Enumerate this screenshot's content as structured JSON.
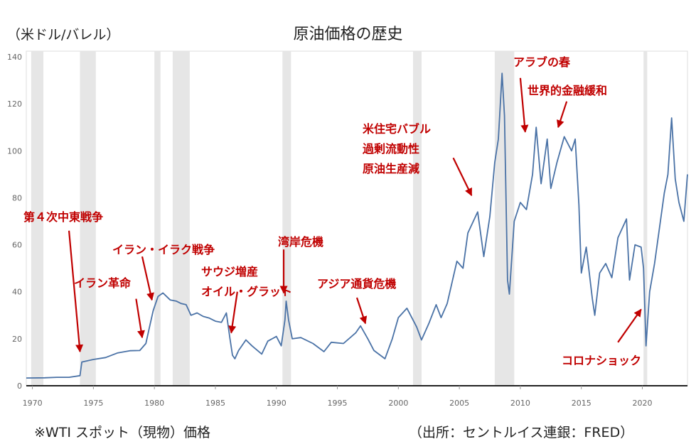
{
  "header": {
    "unit": "（米ドル/バレル）",
    "title": "原油価格の歴史"
  },
  "footer": {
    "note": "※WTI スポット（現物）価格",
    "source": "（出所：セントルイス連銀：FRED）"
  },
  "colors": {
    "line": "#4a72a6",
    "annotation": "#c00000",
    "recession": "#e6e6e6",
    "axis": "#999999"
  },
  "chart_data": {
    "type": "line",
    "title": "原油価格の歴史",
    "ylabel": "（米ドル/バレル）",
    "xlim": [
      1969.5,
      2023.7
    ],
    "ylim": [
      0,
      140
    ],
    "x_ticks": [
      1970,
      1975,
      1980,
      1985,
      1990,
      1995,
      2000,
      2005,
      2010,
      2015,
      2020
    ],
    "y_ticks": [
      0,
      20,
      40,
      60,
      80,
      100,
      120,
      140
    ],
    "recessions": [
      [
        1969.9,
        1970.9
      ],
      [
        1973.9,
        1975.2
      ],
      [
        1980.0,
        1980.5
      ],
      [
        1981.5,
        1982.9
      ],
      [
        1990.5,
        1991.2
      ],
      [
        2001.2,
        2001.9
      ],
      [
        2007.9,
        2009.5
      ],
      [
        2020.1,
        2020.4
      ]
    ],
    "series": [
      {
        "points": [
          [
            1969.5,
            3.3
          ],
          [
            1971.0,
            3.4
          ],
          [
            1972.0,
            3.6
          ],
          [
            1973.0,
            3.6
          ],
          [
            1973.9,
            4.3
          ],
          [
            1974.05,
            10.1
          ],
          [
            1975.0,
            11.2
          ],
          [
            1976.0,
            12.0
          ],
          [
            1977.0,
            14.0
          ],
          [
            1978.0,
            14.9
          ],
          [
            1978.8,
            15.0
          ],
          [
            1979.3,
            18.0
          ],
          [
            1979.6,
            25.0
          ],
          [
            1979.9,
            32.0
          ],
          [
            1980.3,
            38.0
          ],
          [
            1980.7,
            39.5
          ],
          [
            1981.0,
            38.0
          ],
          [
            1981.3,
            36.5
          ],
          [
            1981.8,
            36.0
          ],
          [
            1982.2,
            35.0
          ],
          [
            1982.6,
            34.5
          ],
          [
            1983.0,
            30.0
          ],
          [
            1983.5,
            31.0
          ],
          [
            1984.0,
            29.5
          ],
          [
            1984.5,
            28.8
          ],
          [
            1985.0,
            27.5
          ],
          [
            1985.5,
            27.0
          ],
          [
            1985.9,
            31.0
          ],
          [
            1986.2,
            20.0
          ],
          [
            1986.4,
            13.0
          ],
          [
            1986.6,
            11.5
          ],
          [
            1986.9,
            15.0
          ],
          [
            1987.5,
            19.5
          ],
          [
            1988.0,
            17.0
          ],
          [
            1988.8,
            13.5
          ],
          [
            1989.3,
            19.0
          ],
          [
            1990.0,
            21.0
          ],
          [
            1990.4,
            17.0
          ],
          [
            1990.7,
            28.0
          ],
          [
            1990.8,
            36.0
          ],
          [
            1991.0,
            28.0
          ],
          [
            1991.3,
            20.0
          ],
          [
            1992.0,
            20.5
          ],
          [
            1993.0,
            18.0
          ],
          [
            1993.9,
            14.5
          ],
          [
            1994.5,
            18.5
          ],
          [
            1995.5,
            18.0
          ],
          [
            1996.5,
            22.5
          ],
          [
            1996.9,
            25.5
          ],
          [
            1997.5,
            20.0
          ],
          [
            1998.0,
            15.0
          ],
          [
            1998.9,
            11.5
          ],
          [
            1999.5,
            20.0
          ],
          [
            2000.0,
            29.0
          ],
          [
            2000.7,
            33.0
          ],
          [
            2001.5,
            25.0
          ],
          [
            2001.9,
            19.5
          ],
          [
            2002.5,
            26.5
          ],
          [
            2003.1,
            34.5
          ],
          [
            2003.5,
            29.0
          ],
          [
            2004.0,
            35.0
          ],
          [
            2004.8,
            53.0
          ],
          [
            2005.3,
            50.0
          ],
          [
            2005.7,
            65.0
          ],
          [
            2006.5,
            74.0
          ],
          [
            2007.0,
            55.0
          ],
          [
            2007.5,
            72.0
          ],
          [
            2007.9,
            95.0
          ],
          [
            2008.2,
            105.0
          ],
          [
            2008.5,
            133.0
          ],
          [
            2008.7,
            115.0
          ],
          [
            2008.95,
            45.0
          ],
          [
            2009.1,
            39.0
          ],
          [
            2009.5,
            70.0
          ],
          [
            2010.0,
            78.0
          ],
          [
            2010.5,
            75.0
          ],
          [
            2011.0,
            90.0
          ],
          [
            2011.3,
            110.0
          ],
          [
            2011.7,
            86.0
          ],
          [
            2012.2,
            105.0
          ],
          [
            2012.5,
            84.0
          ],
          [
            2013.0,
            95.0
          ],
          [
            2013.6,
            106.0
          ],
          [
            2014.2,
            100.0
          ],
          [
            2014.5,
            105.0
          ],
          [
            2014.8,
            77.0
          ],
          [
            2015.0,
            48.0
          ],
          [
            2015.4,
            59.0
          ],
          [
            2015.9,
            37.0
          ],
          [
            2016.1,
            30.0
          ],
          [
            2016.5,
            48.0
          ],
          [
            2017.0,
            52.0
          ],
          [
            2017.5,
            46.0
          ],
          [
            2018.0,
            63.0
          ],
          [
            2018.7,
            71.0
          ],
          [
            2018.95,
            45.0
          ],
          [
            2019.4,
            60.0
          ],
          [
            2019.9,
            59.0
          ],
          [
            2020.1,
            50.0
          ],
          [
            2020.3,
            17.0
          ],
          [
            2020.6,
            40.0
          ],
          [
            2021.0,
            52.0
          ],
          [
            2021.8,
            82.0
          ],
          [
            2022.1,
            90.0
          ],
          [
            2022.4,
            114.0
          ],
          [
            2022.7,
            88.0
          ],
          [
            2023.0,
            78.0
          ],
          [
            2023.4,
            70.0
          ],
          [
            2023.7,
            90.0
          ]
        ]
      }
    ],
    "annotations": [
      {
        "lines": [
          "第４次中東戦争"
        ],
        "x": 1973.9,
        "y": 14.5,
        "arrow_from": [
          1973.0,
          66
        ]
      },
      {
        "lines": [
          "イラン革命"
        ],
        "x": 1979.0,
        "y": 20.5,
        "arrow_from": [
          1978.5,
          37
        ]
      },
      {
        "lines": [
          "イラン・イラク戦争"
        ],
        "x": 1979.8,
        "y": 36.5,
        "arrow_from": [
          1979.0,
          55
        ]
      },
      {
        "lines": [
          "サウジ増産",
          "オイル・グラット"
        ],
        "x": 1986.3,
        "y": 22.5,
        "arrow_from": [
          1986.8,
          40
        ]
      },
      {
        "lines": [
          "湾岸危機"
        ],
        "x": 1990.6,
        "y": 39.5,
        "arrow_from": [
          1990.6,
          58
        ]
      },
      {
        "lines": [
          "アジア通貨危機"
        ],
        "x": 1997.3,
        "y": 26.5,
        "arrow_from": [
          1996.6,
          37.5
        ]
      },
      {
        "lines": [
          "米住宅バブル",
          "過剰流動性",
          "原油生産減"
        ],
        "x": 2006.0,
        "y": 81,
        "arrow_from": [
          2004.5,
          97
        ]
      },
      {
        "lines": [
          "アラブの春"
        ],
        "x": 2010.4,
        "y": 108,
        "arrow_from": [
          2010.0,
          131
        ]
      },
      {
        "lines": [
          "世界的金融緩和"
        ],
        "x": 2013.1,
        "y": 110,
        "arrow_from": [
          2013.8,
          121
        ]
      },
      {
        "lines": [
          "コロナショック"
        ],
        "x": 2019.9,
        "y": 32.5,
        "arrow_from": [
          2018.0,
          18.5
        ]
      }
    ]
  }
}
